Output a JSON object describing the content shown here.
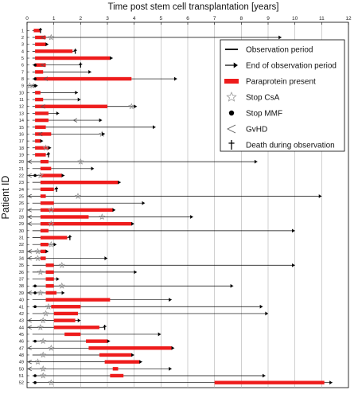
{
  "chart_data": {
    "type": "timeline",
    "title": "Time post stem cell transplantation [years]",
    "xlabel": "",
    "ylabel": "Patient ID",
    "xlim": [
      0,
      12
    ],
    "xticks": [
      0,
      1,
      2,
      3,
      4,
      5,
      6,
      7,
      8,
      9,
      10,
      11,
      12
    ],
    "grid": "vertical",
    "legend_position": "top-right",
    "colors": {
      "observation": "#000000",
      "paraprotein": "#ee1c1c",
      "stop_csa": "#999999",
      "stop_mmf": "#000000",
      "gvhd": "#555555",
      "death": "#000000"
    },
    "legend": [
      {
        "key": "observation",
        "label": "Observation period"
      },
      {
        "key": "end",
        "label": "End of observation period"
      },
      {
        "key": "paraprotein",
        "label": "Paraprotein present"
      },
      {
        "key": "stop_csa",
        "label": "Stop CsA"
      },
      {
        "key": "stop_mmf",
        "label": "Stop MMF"
      },
      {
        "key": "gvhd",
        "label": "GvHD"
      },
      {
        "key": "death",
        "label": "Death during observation"
      }
    ],
    "patients": [
      {
        "id": "1",
        "obs": [
          0.2,
          0.5
        ],
        "end": "death",
        "para": [
          [
            0.25,
            0.5
          ]
        ],
        "csa": [],
        "mmf": [],
        "gvhd": []
      },
      {
        "id": "2",
        "obs": [
          0.2,
          9.5
        ],
        "end": "arrow",
        "para": [
          [
            0.3,
            0.7
          ]
        ],
        "csa": [
          0.9
        ],
        "mmf": [],
        "gvhd": [
          0.6
        ]
      },
      {
        "id": "3",
        "obs": [
          0.2,
          0.8
        ],
        "end": "arrow",
        "para": [
          [
            0.3,
            0.7
          ]
        ],
        "csa": [],
        "mmf": [],
        "gvhd": []
      },
      {
        "id": "4",
        "obs": [
          0.2,
          1.8
        ],
        "end": "death",
        "para": [
          [
            0.3,
            1.7
          ]
        ],
        "csa": [],
        "mmf": [],
        "gvhd": []
      },
      {
        "id": "5",
        "obs": [
          0.2,
          3.2
        ],
        "end": "arrow",
        "para": [
          [
            0.3,
            3.1
          ]
        ],
        "csa": [],
        "mmf": [],
        "gvhd": []
      },
      {
        "id": "6",
        "obs": [
          0.2,
          2.0
        ],
        "end": "death",
        "para": [
          [
            0.3,
            0.7
          ]
        ],
        "csa": [],
        "mmf": [
          0.3
        ],
        "gvhd": [
          0.6
        ]
      },
      {
        "id": "7",
        "obs": [
          0.2,
          2.4
        ],
        "end": "arrow",
        "para": [
          [
            0.3,
            0.6
          ]
        ],
        "csa": [],
        "mmf": [],
        "gvhd": []
      },
      {
        "id": "8",
        "obs": [
          0.2,
          5.6
        ],
        "end": "arrow",
        "para": [
          [
            0.3,
            3.9
          ]
        ],
        "csa": [],
        "mmf": [
          0.3
        ],
        "gvhd": [
          0.7
        ]
      },
      {
        "id": "9",
        "obs": [
          0.05,
          0.4
        ],
        "end": "arrow",
        "para": [],
        "csa": [
          0.1
        ],
        "mmf": [
          0.3
        ],
        "gvhd": [
          0.2
        ]
      },
      {
        "id": "10",
        "obs": [
          0.2,
          1.9
        ],
        "end": "arrow",
        "para": [
          [
            0.3,
            0.5
          ]
        ],
        "csa": [],
        "mmf": [],
        "gvhd": []
      },
      {
        "id": "11",
        "obs": [
          0.2,
          2.0
        ],
        "end": "arrow",
        "para": [
          [
            0.3,
            0.6
          ]
        ],
        "csa": [],
        "mmf": [],
        "gvhd": []
      },
      {
        "id": "12",
        "obs": [
          0.2,
          4.1
        ],
        "end": "arrow",
        "para": [
          [
            0.3,
            3.0
          ]
        ],
        "csa": [
          3.9
        ],
        "mmf": [],
        "gvhd": [
          0.6
        ]
      },
      {
        "id": "13",
        "obs": [
          0.2,
          1.2
        ],
        "end": "arrow",
        "para": [
          [
            0.3,
            0.8
          ]
        ],
        "csa": [],
        "mmf": [],
        "gvhd": []
      },
      {
        "id": "14",
        "obs": [
          0.2,
          2.8
        ],
        "end": "arrow",
        "para": [
          [
            0.3,
            0.8
          ]
        ],
        "csa": [],
        "mmf": [],
        "gvhd": [
          1.8
        ]
      },
      {
        "id": "15",
        "obs": [
          0.2,
          4.8
        ],
        "end": "arrow",
        "para": [
          [
            0.3,
            0.7
          ]
        ],
        "csa": [],
        "mmf": [],
        "gvhd": []
      },
      {
        "id": "16",
        "obs": [
          0.2,
          2.9
        ],
        "end": "arrow",
        "para": [
          [
            0.3,
            0.9
          ]
        ],
        "csa": [
          2.8
        ],
        "mmf": [],
        "gvhd": [
          0.5
        ]
      },
      {
        "id": "17",
        "obs": [
          0.2,
          0.6
        ],
        "end": "arrow",
        "para": [
          [
            0.3,
            0.5
          ]
        ],
        "csa": [],
        "mmf": [],
        "gvhd": []
      },
      {
        "id": "18",
        "obs": [
          0.2,
          0.9
        ],
        "end": "arrow",
        "para": [
          [
            0.3,
            0.8
          ]
        ],
        "csa": [
          0.7
        ],
        "mmf": [],
        "gvhd": []
      },
      {
        "id": "19",
        "obs": [
          0.2,
          0.8
        ],
        "end": "death",
        "para": [
          [
            0.3,
            0.7
          ]
        ],
        "csa": [],
        "mmf": [],
        "gvhd": []
      },
      {
        "id": "20",
        "obs": [
          0.05,
          8.6
        ],
        "end": "arrow",
        "para": [
          [
            0.5,
            0.8
          ]
        ],
        "csa": [
          2.0
        ],
        "mmf": [],
        "gvhd": [
          0.1
        ]
      },
      {
        "id": "21",
        "obs": [
          0.2,
          2.5
        ],
        "end": "arrow",
        "para": [
          [
            0.5,
            0.9
          ]
        ],
        "csa": [],
        "mmf": [],
        "gvhd": []
      },
      {
        "id": "22",
        "obs": [
          0.05,
          1.4
        ],
        "end": "arrow",
        "para": [
          [
            0.5,
            1.3
          ]
        ],
        "csa": [
          0.5
        ],
        "mmf": [
          0.3
        ],
        "gvhd": [
          0.1
        ]
      },
      {
        "id": "23",
        "obs": [
          0.2,
          3.5
        ],
        "end": "arrow",
        "para": [
          [
            0.5,
            3.4
          ]
        ],
        "csa": [],
        "mmf": [],
        "gvhd": []
      },
      {
        "id": "24",
        "obs": [
          0.2,
          1.1
        ],
        "end": "death",
        "para": [
          [
            0.5,
            1.0
          ]
        ],
        "csa": [],
        "mmf": [],
        "gvhd": []
      },
      {
        "id": "25",
        "obs": [
          0.05,
          11.0
        ],
        "end": "arrow",
        "para": [
          [
            0.5,
            0.7
          ]
        ],
        "csa": [
          1.9
        ],
        "mmf": [],
        "gvhd": [
          0.1
        ]
      },
      {
        "id": "26",
        "obs": [
          0.2,
          4.4
        ],
        "end": "arrow",
        "para": [
          [
            0.5,
            1.0
          ]
        ],
        "csa": [],
        "mmf": [],
        "gvhd": []
      },
      {
        "id": "27",
        "obs": [
          0.05,
          3.3
        ],
        "end": "arrow",
        "para": [
          [
            0.5,
            3.2
          ]
        ],
        "csa": [
          0.9
        ],
        "mmf": [],
        "gvhd": [
          0.1
        ]
      },
      {
        "id": "28",
        "obs": [
          0.05,
          6.2
        ],
        "end": "arrow",
        "para": [
          [
            0.5,
            2.3
          ]
        ],
        "csa": [
          2.8
        ],
        "mmf": [],
        "gvhd": [
          0.1
        ]
      },
      {
        "id": "29",
        "obs": [
          0.05,
          4.0
        ],
        "end": "arrow",
        "para": [
          [
            0.5,
            3.9
          ]
        ],
        "csa": [
          0.9
        ],
        "mmf": [],
        "gvhd": [
          0.1
        ]
      },
      {
        "id": "30",
        "obs": [
          0.2,
          10.0
        ],
        "end": "arrow",
        "para": [
          [
            0.5,
            0.8
          ]
        ],
        "csa": [],
        "mmf": [],
        "gvhd": []
      },
      {
        "id": "31",
        "obs": [
          0.2,
          1.6
        ],
        "end": "death",
        "para": [
          [
            0.5,
            1.5
          ]
        ],
        "csa": [],
        "mmf": [],
        "gvhd": []
      },
      {
        "id": "32",
        "obs": [
          0.2,
          1.1
        ],
        "end": "arrow",
        "para": [
          [
            0.5,
            0.8
          ]
        ],
        "csa": [
          0.9
        ],
        "mmf": [],
        "gvhd": []
      },
      {
        "id": "33",
        "obs": [
          0.05,
          0.8
        ],
        "end": "arrow",
        "para": [
          [
            0.5,
            0.7
          ]
        ],
        "csa": [
          0.4
        ],
        "mmf": [],
        "gvhd": [
          0.1
        ]
      },
      {
        "id": "34",
        "obs": [
          0.05,
          3.0
        ],
        "end": "arrow",
        "para": [
          [
            0.5,
            0.7
          ]
        ],
        "csa": [
          0.4
        ],
        "mmf": [],
        "gvhd": [
          0.1
        ]
      },
      {
        "id": "35",
        "obs": [
          0.2,
          10.0
        ],
        "end": "arrow",
        "para": [
          [
            0.7,
            1.0
          ]
        ],
        "csa": [
          1.3
        ],
        "mmf": [],
        "gvhd": []
      },
      {
        "id": "36",
        "obs": [
          0.2,
          4.1
        ],
        "end": "arrow",
        "para": [
          [
            0.7,
            1.0
          ]
        ],
        "csa": [
          0.5
        ],
        "mmf": [],
        "gvhd": []
      },
      {
        "id": "37",
        "obs": [
          0.2,
          1.2
        ],
        "end": "arrow",
        "para": [
          [
            0.7,
            1.0
          ]
        ],
        "csa": [],
        "mmf": [],
        "gvhd": []
      },
      {
        "id": "38",
        "obs": [
          0.2,
          7.7
        ],
        "end": "arrow",
        "para": [
          [
            0.7,
            1.0
          ]
        ],
        "csa": [
          1.3
        ],
        "mmf": [
          0.3
        ],
        "gvhd": []
      },
      {
        "id": "39",
        "obs": [
          0.05,
          1.4
        ],
        "end": "arrow",
        "para": [
          [
            0.7,
            1.1
          ]
        ],
        "csa": [
          0.5
        ],
        "mmf": [
          0.3
        ],
        "gvhd": [
          0.1
        ]
      },
      {
        "id": "40",
        "obs": [
          0.2,
          5.4
        ],
        "end": "arrow",
        "para": [
          [
            0.7,
            3.1
          ]
        ],
        "csa": [],
        "mmf": [],
        "gvhd": []
      },
      {
        "id": "41",
        "obs": [
          0.2,
          8.8
        ],
        "end": "arrow",
        "para": [
          [
            0.9,
            2.0
          ]
        ],
        "csa": [
          0.8
        ],
        "mmf": [
          0.3
        ],
        "gvhd": []
      },
      {
        "id": "42",
        "obs": [
          0.2,
          9.0
        ],
        "end": "arrow",
        "para": [
          [
            1.0,
            1.9
          ]
        ],
        "csa": [
          0.7
        ],
        "mmf": [],
        "gvhd": []
      },
      {
        "id": "43",
        "obs": [
          0.05,
          2.0
        ],
        "end": "arrow",
        "para": [
          [
            1.0,
            1.8
          ]
        ],
        "csa": [
          0.6
        ],
        "mmf": [],
        "gvhd": [
          0.1
        ]
      },
      {
        "id": "44",
        "obs": [
          0.05,
          2.9
        ],
        "end": "death",
        "para": [
          [
            1.0,
            2.7
          ]
        ],
        "csa": [
          0.5
        ],
        "mmf": [],
        "gvhd": [
          0.1
        ]
      },
      {
        "id": "45",
        "obs": [
          0.2,
          5.0
        ],
        "end": "arrow",
        "para": [
          [
            1.4,
            2.0
          ]
        ],
        "csa": [],
        "mmf": [],
        "gvhd": []
      },
      {
        "id": "46",
        "obs": [
          0.2,
          3.1
        ],
        "end": "arrow",
        "para": [
          [
            2.2,
            3.0
          ]
        ],
        "csa": [
          0.6
        ],
        "mmf": [
          0.3
        ],
        "gvhd": []
      },
      {
        "id": "47",
        "obs": [
          0.05,
          5.5
        ],
        "end": "arrow",
        "para": [
          [
            2.3,
            5.4
          ]
        ],
        "csa": [
          0.9
        ],
        "mmf": [],
        "gvhd": [
          0.1
        ]
      },
      {
        "id": "48",
        "obs": [
          0.2,
          4.0
        ],
        "end": "arrow",
        "para": [
          [
            2.7,
            3.9
          ]
        ],
        "csa": [
          0.6
        ],
        "mmf": [],
        "gvhd": []
      },
      {
        "id": "49",
        "obs": [
          0.05,
          4.3
        ],
        "end": "arrow",
        "para": [
          [
            2.9,
            4.2
          ]
        ],
        "csa": [
          0.4
        ],
        "mmf": [],
        "gvhd": [
          0.1
        ]
      },
      {
        "id": "50",
        "obs": [
          0.05,
          5.4
        ],
        "end": "arrow",
        "para": [
          [
            3.2,
            3.4
          ]
        ],
        "csa": [
          0.6
        ],
        "mmf": [],
        "gvhd": [
          0.1
        ]
      },
      {
        "id": "51",
        "obs": [
          0.2,
          8.9
        ],
        "end": "arrow",
        "para": [
          [
            3.1,
            3.6
          ]
        ],
        "csa": [
          0.6
        ],
        "mmf": [
          0.3
        ],
        "gvhd": []
      },
      {
        "id": "52",
        "obs": [
          0.2,
          11.4
        ],
        "end": "arrow",
        "para": [
          [
            7.0,
            11.1
          ]
        ],
        "csa": [
          0.9
        ],
        "mmf": [
          0.3
        ],
        "gvhd": []
      }
    ]
  }
}
